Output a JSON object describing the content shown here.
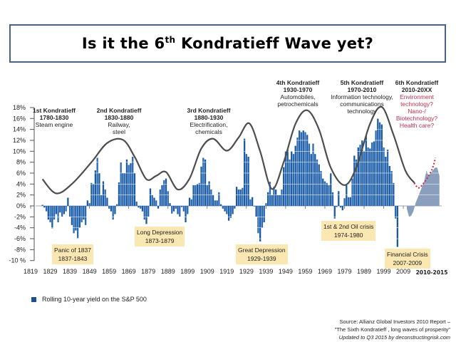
{
  "title": {
    "prefix": "Is it the 6",
    "sup": "th",
    "suffix": " Kondratieff Wave yet?"
  },
  "colors": {
    "bars": "#1f5fa8",
    "recent_area": "#8a9fbd",
    "wave": "#4d4d4d",
    "projection": "#d0283f",
    "crisis_box": "#fbe7b2",
    "future_text": "#c0304f"
  },
  "waves": [
    {
      "name": "1st Kondratieff",
      "period": "1780-1830",
      "desc": [
        "Steam engine"
      ]
    },
    {
      "name": "2nd Kondratieff",
      "period": "1830-1880",
      "desc": [
        "Railway,",
        "steel"
      ]
    },
    {
      "name": "3rd Kondratieff",
      "period": "1880-1930",
      "desc": [
        "Electrification,",
        "chemicals"
      ]
    },
    {
      "name": "4th Kondratieff",
      "period": "1930-1970",
      "desc": [
        "Automobiles,",
        "petrochemicals"
      ]
    },
    {
      "name": "5th Kondratieff",
      "period": "1970-2010",
      "desc": [
        "Information technology,",
        "communications",
        "technology"
      ]
    },
    {
      "name": "6th Kondratieff",
      "period": "2010-20XX",
      "desc": [
        "Environment",
        "technology?",
        "Nano-/",
        "Biotechnology?",
        "Health care?"
      ]
    }
  ],
  "crises": [
    {
      "name": "Panic of 1837",
      "period": "1837-1843"
    },
    {
      "name": "Long Depression",
      "period": "1873-1879"
    },
    {
      "name": "Great Depression",
      "period": "1929-1939"
    },
    {
      "name": "1st & 2nd Oil crisis",
      "period": "1974-1980"
    },
    {
      "name": "Financial Crisis",
      "period": "2007-2009"
    }
  ],
  "legend": {
    "label": "Rolling 10-year yield on the S&P 500"
  },
  "source": {
    "line1": "Source: Allianz Global Investors 2010 Report –",
    "line2": "\"The Sixth Kondratieff , long waves of prosperity\"",
    "line3": "Updated to Q3 2015 by deconstructingrisk.com"
  },
  "chart_data": {
    "type": "bar",
    "title": "Is it the 6th Kondratieff Wave yet?",
    "xlabel": "",
    "ylabel": "",
    "ylim": [
      -10,
      18
    ],
    "yticks": [
      "18%",
      "16%",
      "14%",
      "12%",
      "10%",
      "8%",
      "6%",
      "4%",
      "2%",
      "0%",
      "-2%",
      "-4%",
      "-6%",
      "-8%",
      "-10 %"
    ],
    "xticks": [
      "1819",
      "1829",
      "1839",
      "1849",
      "1859",
      "1869",
      "1879",
      "1889",
      "1899",
      "1909",
      "1919",
      "1929",
      "1939",
      "1949",
      "1959",
      "1969",
      "1979",
      "1989",
      "1999",
      "2009"
    ],
    "xtick_extra": "2010-2015",
    "grid": false,
    "legend_position": "bottom-left",
    "series": [
      {
        "name": "Rolling 10-year yield on the S&P 500",
        "type": "bar",
        "start_year": 1825,
        "values": [
          0.2,
          -0.3,
          -1,
          -2.5,
          -3,
          -4.1,
          -2.5,
          -1.5,
          -3,
          -1.2,
          -2,
          -1.5,
          -1,
          1.5,
          -2,
          -3.5,
          -5,
          -4.5,
          -5.9,
          -4,
          -3,
          -2.5,
          -3.5,
          1,
          0.5,
          4.2,
          4,
          6.5,
          8.8,
          6,
          2,
          4.5,
          3,
          1.5,
          -0.5,
          -1,
          -2.5,
          -1.5,
          0.3,
          4.3,
          8,
          6,
          6,
          8.5,
          7.5,
          7.8,
          9,
          6,
          0.8,
          -0.3,
          -0.5,
          -1,
          -2.5,
          -3.3,
          -2,
          3.2,
          2,
          1.5,
          1,
          -0.5,
          3,
          3.8,
          4.7,
          5,
          2.7,
          0.5,
          -1.4,
          -1,
          -0.5,
          -1.5,
          -2,
          -0.2,
          -1,
          -3,
          -1.5,
          1.5,
          1.2,
          3.8,
          3.8,
          4,
          4.2,
          7.2,
          8.8,
          8.5,
          3.8,
          4.5,
          3,
          2,
          1,
          1,
          2.5,
          0.3,
          -0.5,
          -1,
          -1.5,
          -2.7,
          -2.2,
          -1.5,
          -0.5,
          3.5,
          3,
          3,
          3.3,
          12.3,
          9.5,
          9,
          1.2,
          1.6,
          -0.1,
          -2,
          -5,
          -6.5,
          -4,
          -3,
          0.5,
          2.5,
          4.4,
          2,
          3.5,
          3,
          2,
          2,
          3,
          7.1,
          10,
          10.3,
          8.5,
          10,
          9.5,
          11,
          12.5,
          13.8,
          13.5,
          13.8,
          13.5,
          13,
          11.4,
          9.5,
          11.4,
          9.5,
          8.5,
          7.6,
          6.4,
          5,
          4.5,
          4.2,
          3.8,
          6,
          2.5,
          -2.3,
          -0.2,
          2.7,
          -0.3,
          -0.8,
          1.4,
          3.8,
          1.6,
          1.6,
          5,
          9.2,
          8.5,
          10.7,
          11.2,
          12,
          10,
          12.9,
          10.7,
          10.5,
          11.6,
          11.8,
          13.8,
          16,
          15.3,
          14.9,
          10.7,
          9,
          10.3,
          7.3,
          6.4,
          4.2,
          -2.3,
          -7.5
        ]
      },
      {
        "name": "2010-2015",
        "type": "area",
        "x": [
          2008,
          2008.5,
          2009,
          2009.5,
          2010,
          2010.5,
          2011,
          2011.5,
          2012,
          2012.5,
          2013,
          2013.5,
          2014,
          2014.5,
          2015,
          2015.5
        ],
        "values": [
          -0.5,
          -2,
          -1.8,
          -1,
          0.5,
          1.5,
          2.5,
          3.5,
          4.5,
          6.5,
          5.5,
          6,
          6.5,
          7,
          7,
          5.5
        ]
      },
      {
        "type": "line",
        "style": "solid",
        "x": [
          1825,
          1832,
          1840,
          1850,
          1858,
          1866,
          1872,
          1878,
          1883,
          1888,
          1894,
          1900,
          1906,
          1912,
          1919,
          1925,
          1930.5,
          1936,
          1942,
          1948,
          1954,
          1960,
          1966,
          1972,
          1979,
          1985,
          1992,
          1998,
          2004,
          2010,
          2014.7
        ],
        "values": [
          4.9,
          2.3,
          4,
          8,
          11.5,
          12.1,
          9,
          4.9,
          5.5,
          6.2,
          3,
          5,
          10.5,
          12.3,
          10.1,
          12.5,
          15.1,
          10,
          3.1,
          8,
          15,
          17.5,
          14,
          7,
          3.8,
          7,
          15,
          18.1,
          13,
          6.5,
          4.2
        ]
      },
      {
        "type": "line",
        "style": "dotted",
        "x": [
          2009.7,
          2010.7,
          2012,
          2013.7,
          2014.6
        ],
        "values": [
          4.2,
          3.3,
          4.3,
          6.5,
          8.8
        ]
      }
    ]
  }
}
